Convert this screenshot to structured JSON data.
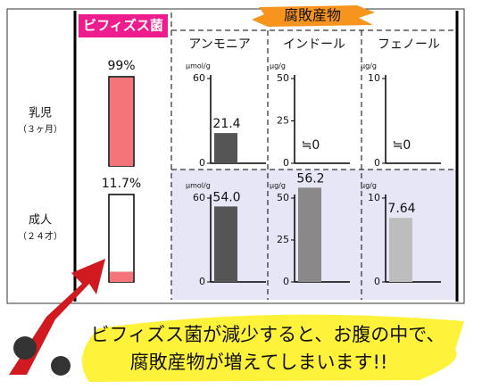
{
  "bifidus_header": "ビフィズス菌",
  "putrefaction_header": "腐敗産物",
  "compounds": [
    "アンモニア",
    "インドール",
    "フェノール"
  ],
  "groups": [
    {
      "label": "乳児",
      "sublabel": "（３ヶ月）"
    },
    {
      "label": "成人",
      "sublabel": "（２４才）"
    }
  ],
  "bifidus": {
    "values": [
      99,
      11.7
    ],
    "value_labels": [
      "99%",
      "11.7%"
    ],
    "ylim": [
      0,
      100
    ],
    "color": "#f57479"
  },
  "panels": [
    {
      "unit": "μmol/g",
      "ylim": [
        0,
        60
      ],
      "yticks": [
        0,
        60
      ],
      "values": [
        21.4,
        54.0
      ],
      "value_labels": [
        "21.4",
        "54.0"
      ],
      "color": "#555555"
    },
    {
      "unit": "μg/g",
      "ylim": [
        0,
        50
      ],
      "yticks": [
        0,
        25,
        50
      ],
      "values": [
        0,
        56.2
      ],
      "value_labels": [
        "≒0",
        "56.2"
      ],
      "color": "#8a8888"
    },
    {
      "unit": "μg/g",
      "ylim": [
        0,
        10
      ],
      "yticks": [
        0,
        10
      ],
      "values": [
        0,
        7.64
      ],
      "value_labels": [
        "≒0",
        "7.64"
      ],
      "color": "#bdbdbd"
    }
  ],
  "caption": [
    "ビフィズス菌が減少すると、お腹の中で、",
    "腐敗産物が増えてしまいます!!"
  ]
}
